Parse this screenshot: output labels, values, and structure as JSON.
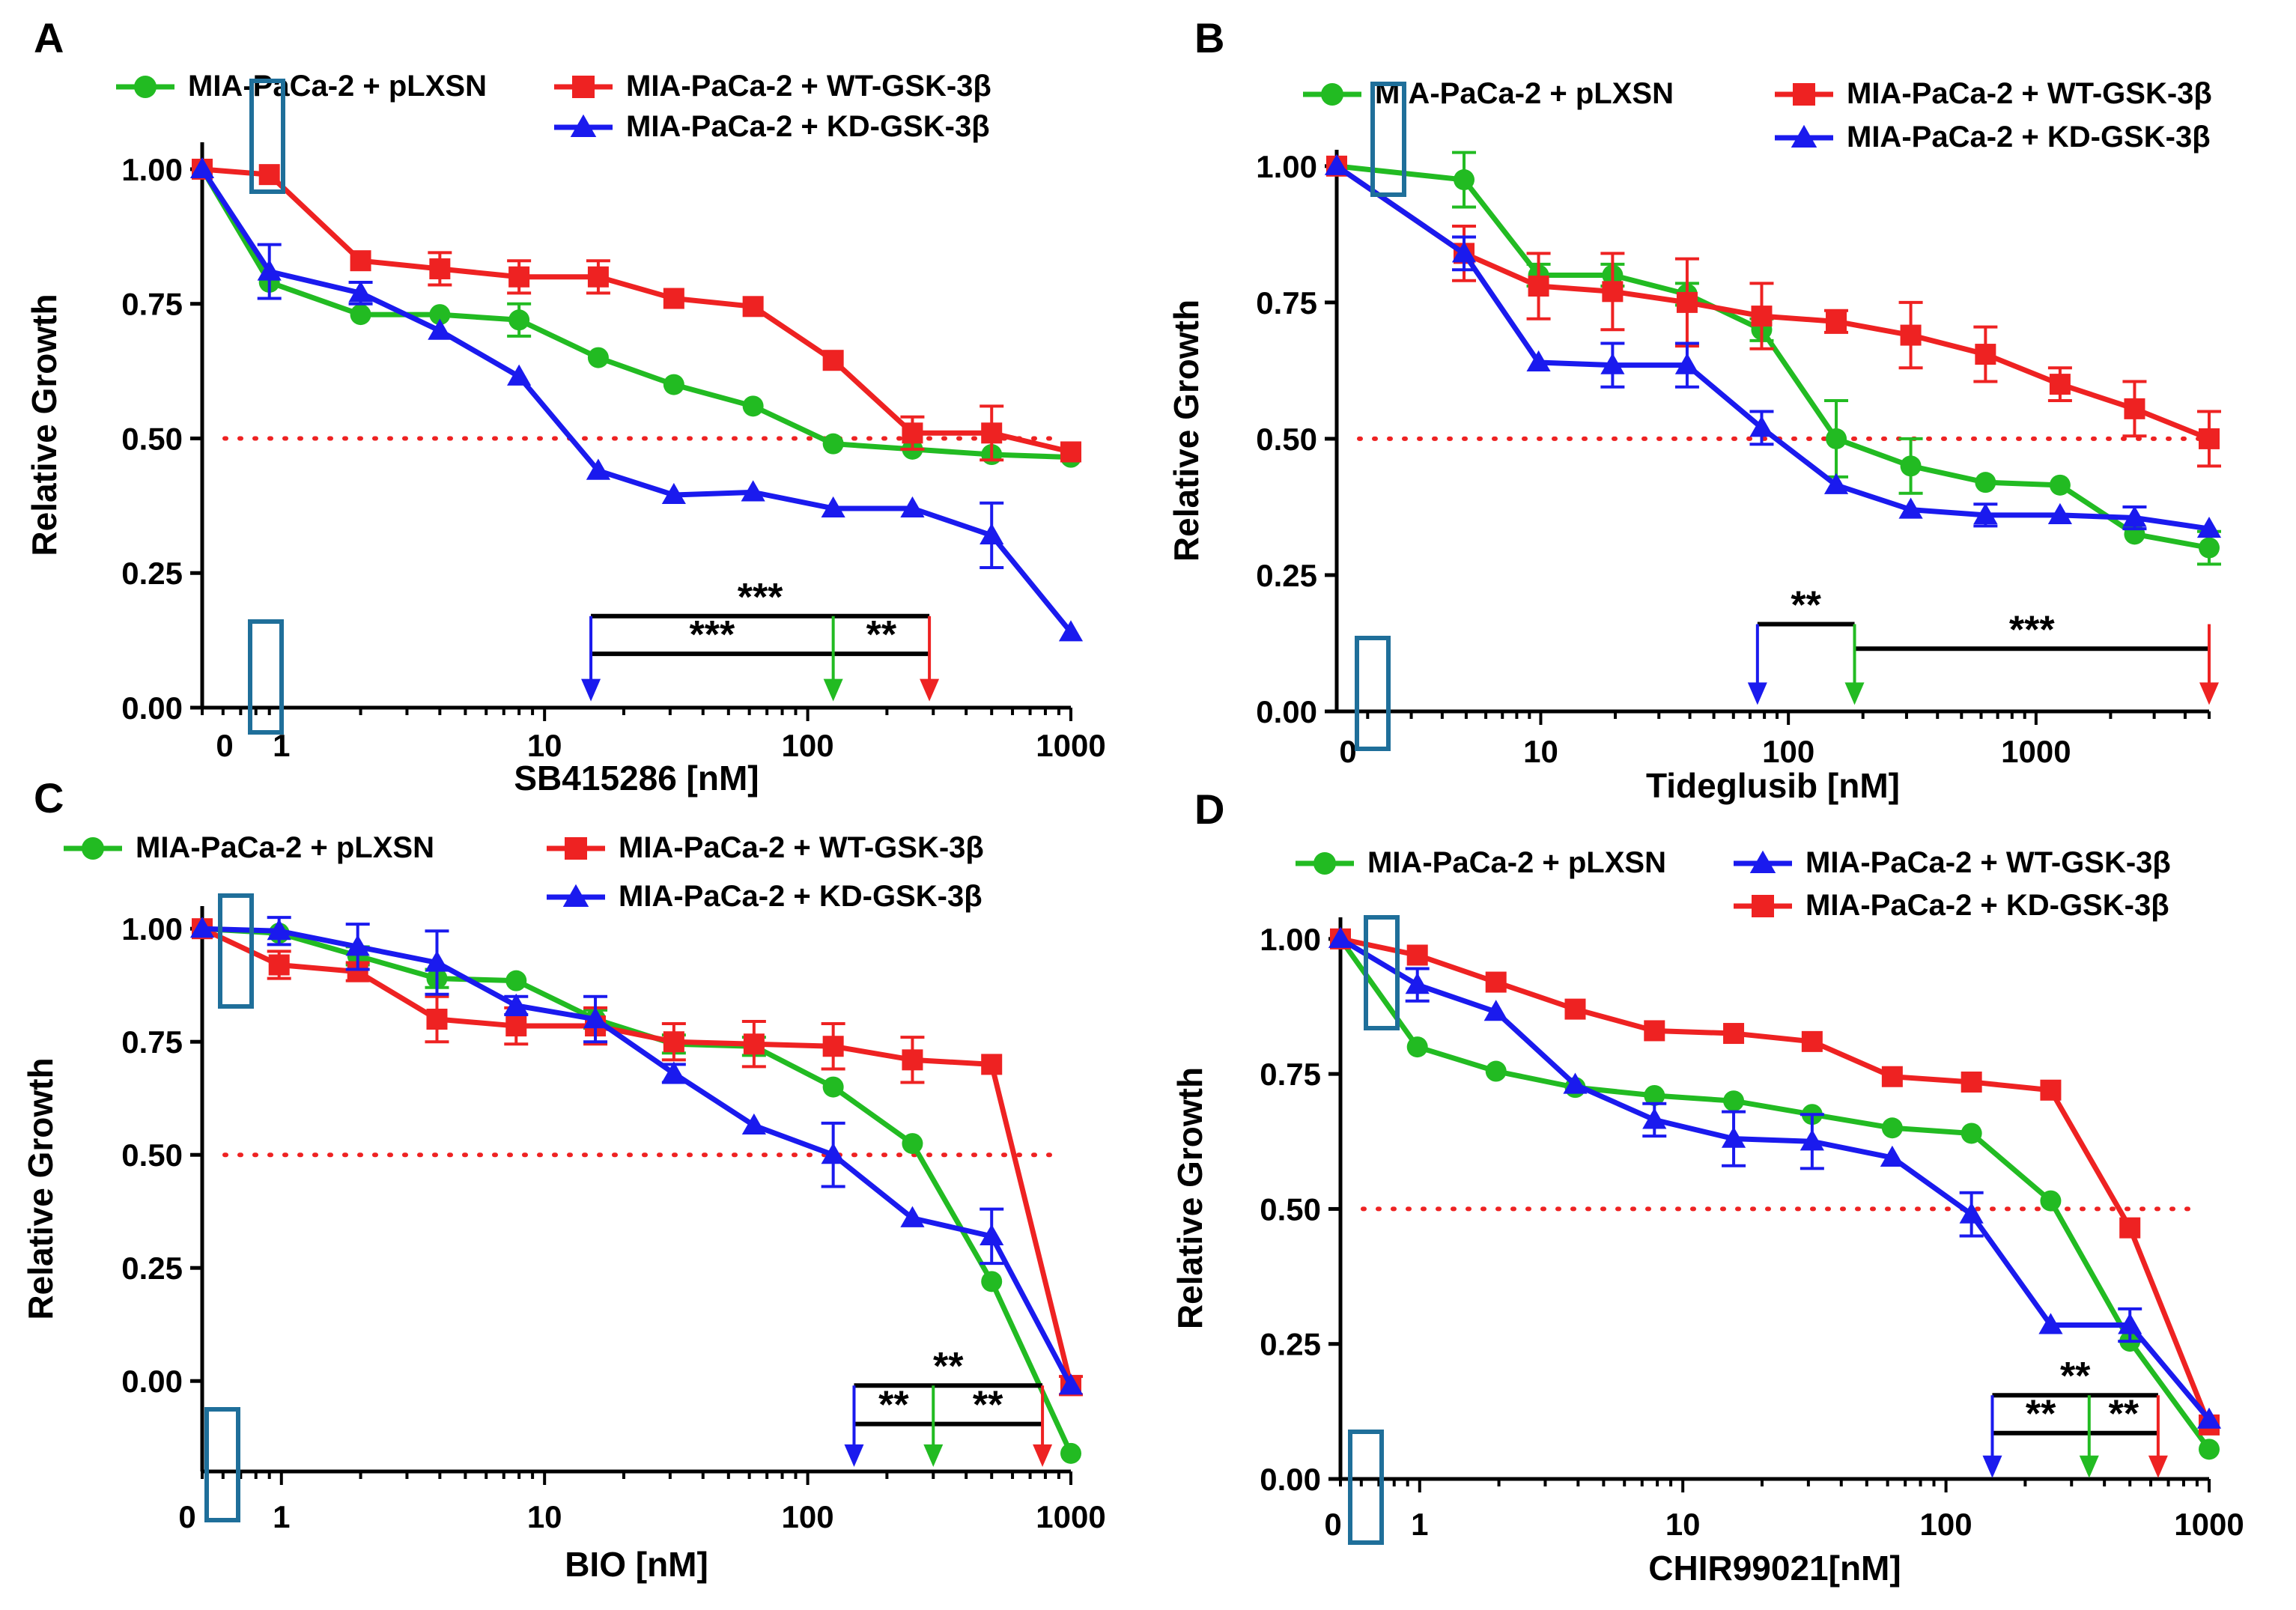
{
  "chart_data": [
    {
      "panel": "A",
      "type": "line",
      "xlabel": "SB415286 [nM]",
      "ylabel": "Relative Growth",
      "x_scale": "log",
      "xlim": [
        0.5,
        1000
      ],
      "ylim": [
        0,
        1.05
      ],
      "x_ticks": [
        {
          "v": 1,
          "label": "1"
        },
        {
          "v": 10,
          "label": "10"
        },
        {
          "v": 100,
          "label": "100"
        },
        {
          "v": 1000,
          "label": "1000"
        }
      ],
      "zero_label": "0",
      "y_ticks": [
        {
          "v": 0,
          "label": "0.00"
        },
        {
          "v": 0.25,
          "label": "0.25"
        },
        {
          "v": 0.5,
          "label": "0.50"
        },
        {
          "v": 0.75,
          "label": "0.75"
        },
        {
          "v": 1.0,
          "label": "1.00"
        }
      ],
      "threshold": 0.5,
      "legend": [
        {
          "text": "MIA-PaCa-2 + pLXSN",
          "series": 0
        },
        {
          "text": "MIA-PaCa-2 + WT-GSK-3β",
          "series": 1
        },
        {
          "text": "MIA-PaCa-2 + KD-GSK-3β",
          "series": 2
        }
      ],
      "series": [
        {
          "name": "MIA-PaCa-2 + pLXSN",
          "color": "#22bb22",
          "marker": "circle",
          "x": [
            0.5,
            0.9,
            2,
            4,
            8,
            16,
            31,
            62,
            125,
            250,
            500,
            1000
          ],
          "y": [
            1.0,
            0.79,
            0.73,
            0.73,
            0.72,
            0.65,
            0.6,
            0.56,
            0.49,
            0.48,
            0.47,
            0.465
          ],
          "err": [
            0,
            0.01,
            0.01,
            0.01,
            0.03,
            0.01,
            0.01,
            0.01,
            0.01,
            0.01,
            0.01,
            0.01
          ]
        },
        {
          "name": "MIA-PaCa-2 + WT-GSK-3β",
          "color": "#ee2222",
          "marker": "square",
          "x": [
            0.5,
            0.9,
            2,
            4,
            8,
            16,
            31,
            62,
            125,
            250,
            500,
            1000
          ],
          "y": [
            1.0,
            0.99,
            0.83,
            0.815,
            0.8,
            0.8,
            0.76,
            0.745,
            0.645,
            0.51,
            0.51,
            0.475
          ],
          "err": [
            0,
            0.01,
            0.01,
            0.03,
            0.03,
            0.03,
            0.01,
            0.01,
            0.01,
            0.03,
            0.05,
            0.01
          ]
        },
        {
          "name": "MIA-PaCa-2 + KD-GSK-3β",
          "color": "#1a1aee",
          "marker": "triangle",
          "x": [
            0.5,
            0.9,
            2,
            4,
            8,
            16,
            31,
            62,
            125,
            250,
            500,
            1000
          ],
          "y": [
            1.0,
            0.81,
            0.77,
            0.7,
            0.615,
            0.44,
            0.395,
            0.4,
            0.37,
            0.37,
            0.32,
            0.14
          ],
          "err": [
            0,
            0.05,
            0.02,
            0.01,
            0.01,
            0.01,
            0.01,
            0.01,
            0.01,
            0.01,
            0.06,
            0.01
          ]
        }
      ],
      "significance": {
        "arrows": [
          {
            "x": 15,
            "series": 2
          },
          {
            "x": 125,
            "series": 0
          },
          {
            "x": 290,
            "series": 1
          }
        ],
        "brackets": [
          {
            "from": 15,
            "to": 290,
            "y": 0.17,
            "label": "***"
          },
          {
            "from": 15,
            "to": 125,
            "y": 0.1,
            "label": "***"
          },
          {
            "from": 125,
            "to": 290,
            "y": 0.1,
            "label": "**"
          }
        ],
        "arrow_bottom": 0.02
      }
    },
    {
      "panel": "B",
      "type": "line",
      "xlabel": "Tideglusib [nM]",
      "ylabel": "Relative Growth",
      "x_scale": "log",
      "xlim": [
        1.5,
        5000
      ],
      "ylim": [
        0,
        1.03
      ],
      "x_ticks": [
        {
          "v": 10,
          "label": "10"
        },
        {
          "v": 100,
          "label": "100"
        },
        {
          "v": 1000,
          "label": "1000"
        }
      ],
      "zero_label": "0",
      "y_ticks": [
        {
          "v": 0,
          "label": "0.00"
        },
        {
          "v": 0.25,
          "label": "0.25"
        },
        {
          "v": 0.5,
          "label": "0.50"
        },
        {
          "v": 0.75,
          "label": "0.75"
        },
        {
          "v": 1.0,
          "label": "1.00"
        }
      ],
      "threshold": 0.5,
      "legend": [
        {
          "text": "MIA-PaCa-2 + pLXSN",
          "series": 0
        },
        {
          "text": "MIA-PaCa-2 + WT-GSK-3β",
          "series": 1
        },
        {
          "text": "MIA-PaCa-2 + KD-GSK-3β",
          "series": 2
        }
      ],
      "series": [
        {
          "name": "MIA-PaCa-2 + pLXSN",
          "color": "#22bb22",
          "marker": "circle",
          "x": [
            1.5,
            4.9,
            9.8,
            19.5,
            39,
            78,
            156,
            312,
            625,
            1250,
            2500,
            5000
          ],
          "y": [
            1.0,
            0.975,
            0.8,
            0.8,
            0.765,
            0.7,
            0.5,
            0.45,
            0.42,
            0.415,
            0.325,
            0.3
          ],
          "err": [
            0,
            0.05,
            0.02,
            0.02,
            0.02,
            0.02,
            0.07,
            0.05,
            0.01,
            0.01,
            0.01,
            0.03
          ]
        },
        {
          "name": "MIA-PaCa-2 + WT-GSK-3β",
          "color": "#ee2222",
          "marker": "square",
          "x": [
            1.5,
            4.9,
            9.8,
            19.5,
            39,
            78,
            156,
            312,
            625,
            1250,
            2500,
            5000
          ],
          "y": [
            1.0,
            0.84,
            0.78,
            0.77,
            0.75,
            0.725,
            0.715,
            0.69,
            0.655,
            0.6,
            0.555,
            0.5
          ],
          "err": [
            0,
            0.05,
            0.06,
            0.07,
            0.08,
            0.06,
            0.02,
            0.06,
            0.05,
            0.03,
            0.05,
            0.05
          ]
        },
        {
          "name": "MIA-PaCa-2 + KD-GSK-3β",
          "color": "#1a1aee",
          "marker": "triangle",
          "x": [
            1.5,
            4.9,
            9.8,
            19.5,
            39,
            78,
            156,
            312,
            625,
            1250,
            2500,
            5000
          ],
          "y": [
            1.0,
            0.84,
            0.64,
            0.635,
            0.635,
            0.52,
            0.415,
            0.37,
            0.36,
            0.36,
            0.355,
            0.335
          ],
          "err": [
            0,
            0.03,
            0.01,
            0.04,
            0.04,
            0.03,
            0.01,
            0.01,
            0.02,
            0.01,
            0.02,
            0.01
          ]
        }
      ],
      "significance": {
        "arrows": [
          {
            "x": 75,
            "series": 2
          },
          {
            "x": 185,
            "series": 0
          },
          {
            "x": 5000,
            "series": 1
          }
        ],
        "brackets": [
          {
            "from": 75,
            "to": 185,
            "y": 0.16,
            "label": "**"
          },
          {
            "from": 185,
            "to": 5000,
            "y": 0.115,
            "label": "***"
          }
        ],
        "arrow_bottom": 0.02
      }
    },
    {
      "panel": "C",
      "type": "line",
      "xlabel": "BIO [nM]",
      "ylabel": "Relative Growth",
      "x_scale": "log",
      "xlim": [
        0.5,
        1000
      ],
      "ylim": [
        -0.2,
        1.05
      ],
      "x_ticks": [
        {
          "v": 1,
          "label": "1"
        },
        {
          "v": 10,
          "label": "10"
        },
        {
          "v": 100,
          "label": "100"
        },
        {
          "v": 1000,
          "label": "1000"
        }
      ],
      "zero_label": "0",
      "y_ticks": [
        {
          "v": 0,
          "label": "0.00"
        },
        {
          "v": 0.25,
          "label": "0.25"
        },
        {
          "v": 0.5,
          "label": "0.50"
        },
        {
          "v": 0.75,
          "label": "0.75"
        },
        {
          "v": 1.0,
          "label": "1.00"
        }
      ],
      "threshold": 0.5,
      "legend": [
        {
          "text": "MIA-PaCa-2 + pLXSN",
          "series": 0
        },
        {
          "text": "MIA-PaCa-2 + WT-GSK-3β",
          "series": 1
        },
        {
          "text": "MIA-PaCa-2 + KD-GSK-3β",
          "series": 2
        }
      ],
      "series": [
        {
          "name": "MIA-PaCa-2 + pLXSN",
          "color": "#22bb22",
          "marker": "circle",
          "x": [
            0.5,
            0.98,
            1.95,
            3.9,
            7.8,
            15.6,
            31,
            62.5,
            125,
            250,
            500,
            1000
          ],
          "y": [
            1.0,
            0.99,
            0.94,
            0.89,
            0.885,
            0.8,
            0.745,
            0.74,
            0.65,
            0.525,
            0.22,
            -0.16
          ],
          "err": [
            0,
            0.01,
            0.02,
            0.02,
            0.01,
            0.02,
            0.02,
            0.02,
            0.01,
            0.01,
            0.01,
            0.01
          ]
        },
        {
          "name": "MIA-PaCa-2 + WT-GSK-3β",
          "color": "#ee2222",
          "marker": "square",
          "x": [
            0.5,
            0.98,
            1.95,
            3.9,
            7.8,
            15.6,
            31,
            62.5,
            125,
            250,
            500,
            1000
          ],
          "y": [
            1.0,
            0.92,
            0.905,
            0.8,
            0.785,
            0.785,
            0.75,
            0.745,
            0.74,
            0.71,
            0.7,
            -0.01
          ],
          "err": [
            0,
            0.03,
            0.02,
            0.05,
            0.04,
            0.04,
            0.04,
            0.05,
            0.05,
            0.05,
            0.01,
            0.02
          ]
        },
        {
          "name": "MIA-PaCa-2 + KD-GSK-3β",
          "color": "#1a1aee",
          "marker": "triangle",
          "x": [
            0.5,
            0.98,
            1.95,
            3.9,
            7.8,
            15.6,
            31,
            62.5,
            125,
            250,
            500,
            1000
          ],
          "y": [
            1.0,
            0.995,
            0.96,
            0.925,
            0.83,
            0.8,
            0.68,
            0.565,
            0.5,
            0.36,
            0.32,
            -0.01
          ],
          "err": [
            0,
            0.03,
            0.05,
            0.07,
            0.02,
            0.05,
            0.02,
            0.01,
            0.07,
            0.01,
            0.06,
            0.01
          ]
        }
      ],
      "significance": {
        "arrows": [
          {
            "x": 150,
            "series": 2
          },
          {
            "x": 300,
            "series": 0
          },
          {
            "x": 780,
            "series": 1
          }
        ],
        "brackets": [
          {
            "from": 150,
            "to": 780,
            "y": -0.01,
            "label": "**"
          },
          {
            "from": 150,
            "to": 300,
            "y": -0.095,
            "label": "**"
          },
          {
            "from": 300,
            "to": 780,
            "y": -0.095,
            "label": "**"
          }
        ],
        "arrow_bottom": -0.18
      }
    },
    {
      "panel": "D",
      "type": "line",
      "xlabel": "CHIR99021[nM]",
      "ylabel": "Relative Growth",
      "x_scale": "log",
      "xlim": [
        0.5,
        1000
      ],
      "ylim": [
        0,
        1.04
      ],
      "x_ticks": [
        {
          "v": 1,
          "label": "1"
        },
        {
          "v": 10,
          "label": "10"
        },
        {
          "v": 100,
          "label": "100"
        },
        {
          "v": 1000,
          "label": "1000"
        }
      ],
      "zero_label": "0",
      "y_ticks": [
        {
          "v": 0,
          "label": "0.00"
        },
        {
          "v": 0.25,
          "label": "0.25"
        },
        {
          "v": 0.5,
          "label": "0.50"
        },
        {
          "v": 0.75,
          "label": "0.75"
        },
        {
          "v": 1.0,
          "label": "1.00"
        }
      ],
      "threshold": 0.5,
      "legend": [
        {
          "text": "MIA-PaCa-2 + pLXSN",
          "series": 0
        },
        {
          "text": "MIA-PaCa-2 + WT-GSK-3β",
          "series": 2
        },
        {
          "text": "MIA-PaCa-2 + KD-GSK-3β",
          "series": 1
        }
      ],
      "series": [
        {
          "name": "MIA-PaCa-2 + pLXSN",
          "color": "#22bb22",
          "marker": "circle",
          "x": [
            0.5,
            0.98,
            1.95,
            3.9,
            7.8,
            15.6,
            31,
            62.5,
            125,
            250,
            500,
            1000
          ],
          "y": [
            1.0,
            0.8,
            0.755,
            0.725,
            0.71,
            0.7,
            0.675,
            0.65,
            0.64,
            0.515,
            0.255,
            0.055
          ],
          "err": [
            0,
            0.01,
            0.01,
            0.01,
            0.01,
            0.01,
            0.01,
            0.01,
            0.01,
            0.01,
            0.01,
            0.01
          ]
        },
        {
          "name": "MIA-PaCa-2 + KD-GSK-3β",
          "color": "#ee2222",
          "marker": "square",
          "x": [
            0.5,
            0.98,
            1.95,
            3.9,
            7.8,
            15.6,
            31,
            62.5,
            125,
            250,
            500,
            1000
          ],
          "y": [
            1.0,
            0.97,
            0.92,
            0.87,
            0.83,
            0.825,
            0.81,
            0.745,
            0.735,
            0.72,
            0.465,
            0.1
          ],
          "err": [
            0,
            0.01,
            0.01,
            0.01,
            0.01,
            0.01,
            0.01,
            0.01,
            0.01,
            0.01,
            0.01,
            0.01
          ]
        },
        {
          "name": "MIA-PaCa-2 + WT-GSK-3β",
          "color": "#1a1aee",
          "marker": "triangle",
          "x": [
            0.5,
            0.98,
            1.95,
            3.9,
            7.8,
            15.6,
            31,
            62.5,
            125,
            250,
            500,
            1000
          ],
          "y": [
            1.0,
            0.915,
            0.865,
            0.73,
            0.665,
            0.63,
            0.625,
            0.595,
            0.49,
            0.285,
            0.285,
            0.11
          ],
          "err": [
            0,
            0.03,
            0.01,
            0.01,
            0.03,
            0.05,
            0.05,
            0.01,
            0.04,
            0.01,
            0.03,
            0.01
          ]
        }
      ],
      "significance": {
        "arrows": [
          {
            "x": 150,
            "series": 2
          },
          {
            "x": 350,
            "series": 0
          },
          {
            "x": 640,
            "series": 1
          }
        ],
        "brackets": [
          {
            "from": 150,
            "to": 640,
            "y": 0.155,
            "label": "**"
          },
          {
            "from": 150,
            "to": 350,
            "y": 0.085,
            "label": "**"
          },
          {
            "from": 350,
            "to": 640,
            "y": 0.085,
            "label": "**"
          }
        ],
        "arrow_bottom": 0.01
      }
    }
  ]
}
